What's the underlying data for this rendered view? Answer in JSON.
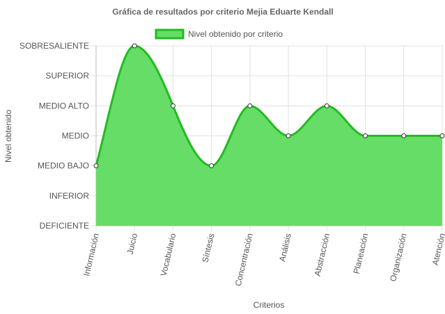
{
  "chart_data": {
    "type": "area",
    "title": "Gráfica de resultados por criterio Mejia Eduarte Kendall",
    "xlabel": "Criterios",
    "ylabel": "Nivel obtenido",
    "legend": {
      "label": "Nivel obtenido por criterio",
      "position": "top"
    },
    "y_levels": [
      "DEFICIENTE",
      "INFERIOR",
      "MEDIO BAJO",
      "MEDIO",
      "MEDIO ALTO",
      "SUPERIOR",
      "SOBRESALIENTE"
    ],
    "ylim": [
      0,
      6
    ],
    "categories": [
      "Información",
      "Juicio",
      "Vocabulario",
      "Síntesis",
      "Concentración",
      "Análisis",
      "Abstracción",
      "Planeación",
      "Organización",
      "Atención"
    ],
    "series": [
      {
        "name": "Nivel obtenido por criterio",
        "values": [
          2,
          6,
          4,
          2,
          4,
          3,
          4,
          3,
          3,
          3
        ]
      }
    ],
    "grid": true,
    "colors": {
      "fill": "#66dd66",
      "line": "#22bb22",
      "point_fill": "#ffffff",
      "point_stroke": "#333333",
      "grid": "#e0e0e0"
    }
  }
}
